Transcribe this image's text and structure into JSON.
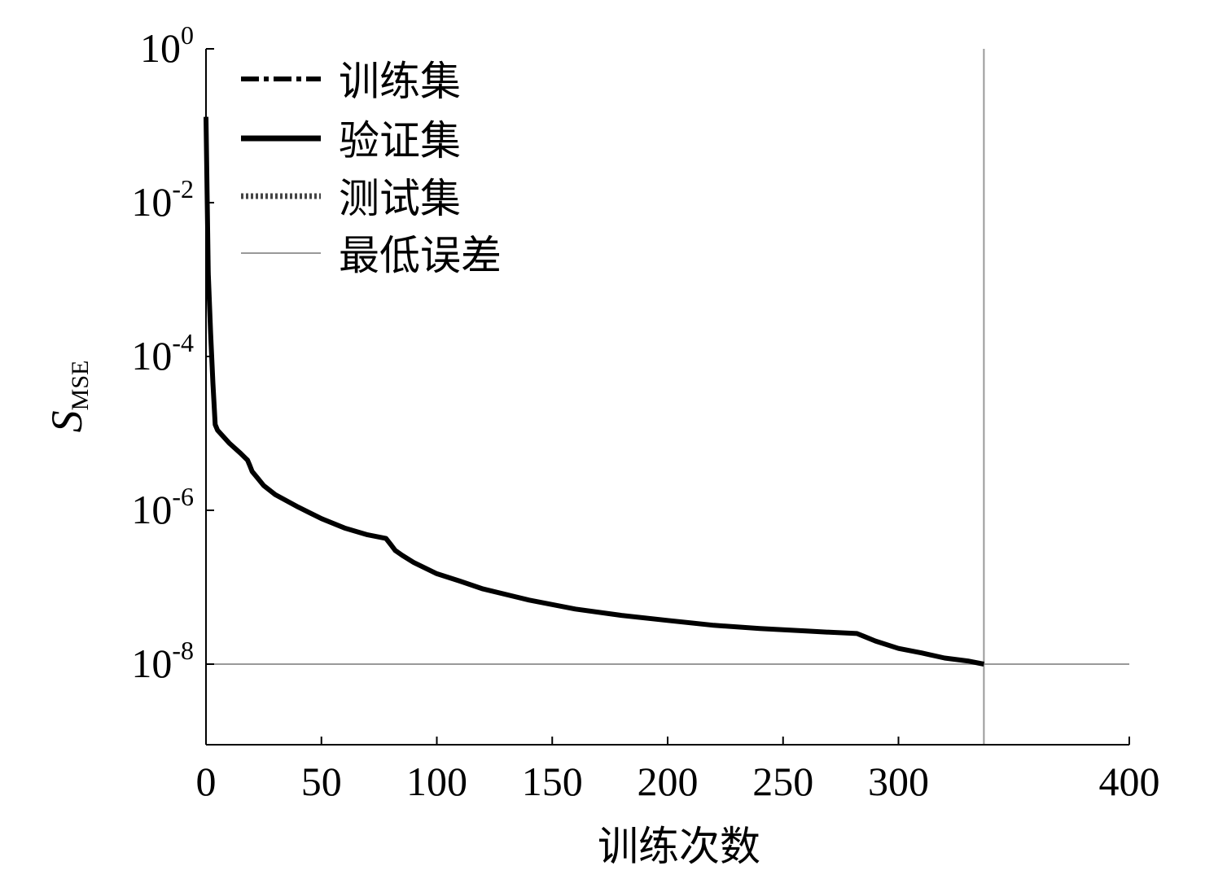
{
  "chart_data": {
    "type": "line",
    "xlabel": "训练次数",
    "ylabel": {
      "main": "S",
      "sub": "MSE"
    },
    "xlim": [
      0,
      400
    ],
    "xticks": [
      0,
      50,
      100,
      150,
      200,
      250,
      300,
      400
    ],
    "xtick_labels": [
      "0",
      "50",
      "100",
      "150",
      "200",
      "250",
      "300",
      "400"
    ],
    "y_scale": "log",
    "ylim_exponent": [
      -9,
      0
    ],
    "yticks": [
      {
        "base": "10",
        "exp": "0"
      },
      {
        "base": "10",
        "exp": "-2"
      },
      {
        "base": "10",
        "exp": "-4"
      },
      {
        "base": "10",
        "exp": "-6"
      },
      {
        "base": "10",
        "exp": "-8"
      }
    ],
    "legend_position": "top-left",
    "series": [
      {
        "name": "训练集",
        "style": "dashdot",
        "color": "#000000",
        "x": [
          0,
          1,
          2,
          3,
          4,
          5,
          10,
          15,
          17,
          18,
          19,
          20,
          22,
          25,
          30,
          40,
          50,
          60,
          70,
          78,
          80,
          82,
          85,
          90,
          100,
          110,
          120,
          140,
          160,
          180,
          200,
          220,
          240,
          260,
          270,
          282,
          285,
          290,
          300,
          310,
          320,
          330,
          337
        ],
        "y": [
          0.13,
          0.0012,
          0.0002,
          4.5e-05,
          1.3e-05,
          1.1e-05,
          7.5e-06,
          5.5e-06,
          4.8e-06,
          4.5e-06,
          3.8e-06,
          3.2e-06,
          2.7e-06,
          2.1e-06,
          1.6e-06,
          1.1e-06,
          7.8e-07,
          5.9e-07,
          4.8e-07,
          4.3e-07,
          3.6e-07,
          3e-07,
          2.6e-07,
          2.1e-07,
          1.5e-07,
          1.2e-07,
          9.5e-08,
          6.8e-08,
          5.2e-08,
          4.3e-08,
          3.7e-08,
          3.2e-08,
          2.9e-08,
          2.7e-08,
          2.6e-08,
          2.5e-08,
          2.3e-08,
          2e-08,
          1.6e-08,
          1.4e-08,
          1.2e-08,
          1.1e-08,
          1e-08
        ]
      },
      {
        "name": "验证集",
        "style": "solid",
        "color": "#000000",
        "x": [
          0,
          1,
          2,
          3,
          4,
          5,
          10,
          15,
          17,
          18,
          19,
          20,
          22,
          25,
          30,
          40,
          50,
          60,
          70,
          78,
          80,
          82,
          85,
          90,
          100,
          110,
          120,
          140,
          160,
          180,
          200,
          220,
          240,
          260,
          270,
          282,
          285,
          290,
          300,
          310,
          320,
          330,
          337
        ],
        "y": [
          0.13,
          0.0012,
          0.0002,
          4.5e-05,
          1.3e-05,
          1.1e-05,
          7.5e-06,
          5.5e-06,
          4.8e-06,
          4.5e-06,
          3.8e-06,
          3.2e-06,
          2.7e-06,
          2.1e-06,
          1.6e-06,
          1.1e-06,
          7.8e-07,
          5.9e-07,
          4.8e-07,
          4.3e-07,
          3.6e-07,
          3e-07,
          2.6e-07,
          2.1e-07,
          1.5e-07,
          1.2e-07,
          9.5e-08,
          6.8e-08,
          5.2e-08,
          4.3e-08,
          3.7e-08,
          3.2e-08,
          2.9e-08,
          2.7e-08,
          2.6e-08,
          2.5e-08,
          2.3e-08,
          2e-08,
          1.6e-08,
          1.4e-08,
          1.2e-08,
          1.1e-08,
          1e-08
        ]
      },
      {
        "name": "测试集",
        "style": "dotted",
        "color": "#555555",
        "x": [
          0,
          1,
          2,
          3,
          4,
          5,
          10,
          15,
          17,
          18,
          19,
          20,
          22,
          25,
          30,
          40,
          50,
          60,
          70,
          78,
          80,
          82,
          85,
          90,
          100,
          110,
          120,
          140,
          160,
          180,
          200,
          220,
          240,
          260,
          270,
          282,
          285,
          290,
          300,
          310,
          320,
          330,
          337
        ],
        "y": [
          0.13,
          0.0012,
          0.0002,
          4.5e-05,
          1.3e-05,
          1.1e-05,
          7.5e-06,
          5.5e-06,
          4.8e-06,
          4.5e-06,
          3.8e-06,
          3.2e-06,
          2.7e-06,
          2.1e-06,
          1.6e-06,
          1.1e-06,
          7.8e-07,
          5.9e-07,
          4.8e-07,
          4.3e-07,
          3.6e-07,
          3e-07,
          2.6e-07,
          2.1e-07,
          1.5e-07,
          1.2e-07,
          9.5e-08,
          6.8e-08,
          5.2e-08,
          4.3e-08,
          3.7e-08,
          3.2e-08,
          2.9e-08,
          2.7e-08,
          2.6e-08,
          2.5e-08,
          2.3e-08,
          2e-08,
          1.6e-08,
          1.4e-08,
          1.2e-08,
          1.1e-08,
          1e-08
        ]
      }
    ],
    "reference_lines": {
      "name": "最低误差",
      "color": "#999999",
      "horizontal_y": 1e-08,
      "vertical_x": 337
    }
  }
}
